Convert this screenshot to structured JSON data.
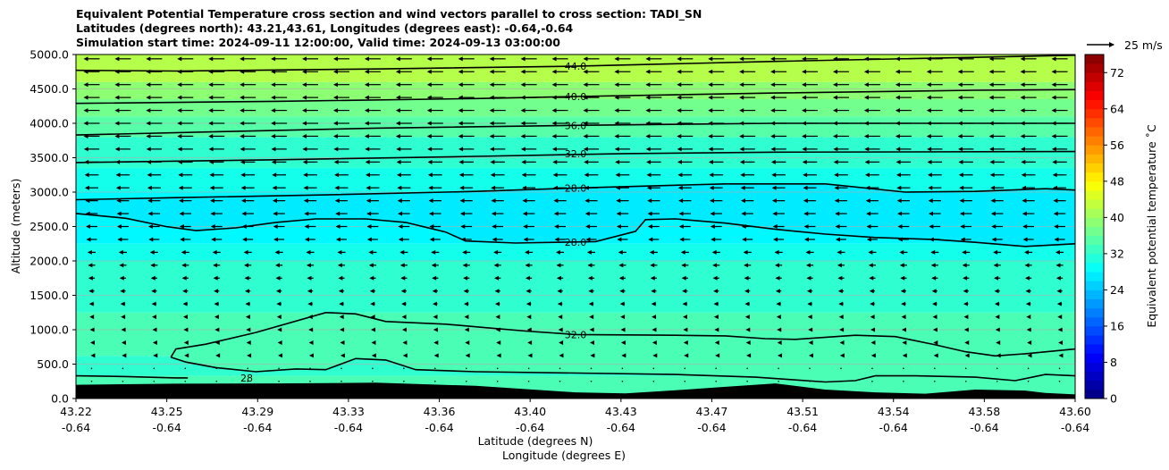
{
  "title_lines": [
    "Equivalent Potential Temperature cross section and wind vectors parallel to cross section: TADI_SN",
    "Latitudes (degrees north): 43.21,43.61, Longitudes (degrees east): -0.64,-0.64",
    "Simulation start time: 2024-09-11 12:00:00, Valid time: 2024-09-13 03:00:00"
  ],
  "chart_data": {
    "type": "contourf",
    "xlabel": "Latitude (degrees N)",
    "xlabel2": "Longitude (degrees E)",
    "ylabel": "Altitude (meters)",
    "ylim": [
      0,
      5000
    ],
    "y_ticks": [
      0,
      500,
      1000,
      1500,
      2000,
      2500,
      3000,
      3500,
      4000,
      4500,
      5000
    ],
    "y_tick_labels": [
      "0.0",
      "500.0",
      "1000.0",
      "1500.0",
      "2000.0",
      "2500.0",
      "3000.0",
      "3500.0",
      "4000.0",
      "4500.0",
      "5000.0"
    ],
    "x_ticks": [
      {
        "lat": "43.22",
        "lon": "-0.64"
      },
      {
        "lat": "43.25",
        "lon": "-0.64"
      },
      {
        "lat": "43.29",
        "lon": "-0.64"
      },
      {
        "lat": "43.33",
        "lon": "-0.64"
      },
      {
        "lat": "43.36",
        "lon": "-0.64"
      },
      {
        "lat": "43.40",
        "lon": "-0.64"
      },
      {
        "lat": "43.43",
        "lon": "-0.64"
      },
      {
        "lat": "43.47",
        "lon": "-0.64"
      },
      {
        "lat": "43.51",
        "lon": "-0.64"
      },
      {
        "lat": "43.54",
        "lon": "-0.64"
      },
      {
        "lat": "43.58",
        "lon": "-0.64"
      },
      {
        "lat": "43.60",
        "lon": "-0.64"
      }
    ],
    "grid": true,
    "colorbar": {
      "label": "Equivalent potential temperature $^\\circ$C",
      "label_text": "Equivalent potential temperature ˚C",
      "min": 0,
      "max": 76,
      "step": 2,
      "tick_values": [
        0,
        8,
        16,
        24,
        32,
        40,
        48,
        56,
        64,
        72
      ],
      "tick_labels": [
        "0",
        "8",
        "16",
        "24",
        "32",
        "40",
        "48",
        "56",
        "64",
        "72"
      ],
      "colormap": "jet"
    },
    "vector_key": {
      "label": "25 m/s",
      "speed": 25
    },
    "contours": [
      {
        "label": "44.0",
        "pts": [
          [
            0,
            4770
          ],
          [
            0.1,
            4760
          ],
          [
            0.3,
            4790
          ],
          [
            0.5,
            4830
          ],
          [
            0.7,
            4900
          ],
          [
            1.0,
            4990
          ]
        ]
      },
      {
        "label": "40.0",
        "pts": [
          [
            0,
            4290
          ],
          [
            0.2,
            4320
          ],
          [
            0.4,
            4360
          ],
          [
            0.5,
            4390
          ],
          [
            0.7,
            4440
          ],
          [
            0.9,
            4480
          ],
          [
            1.0,
            4490
          ]
        ]
      },
      {
        "label": "36.0",
        "pts": [
          [
            0,
            3830
          ],
          [
            0.15,
            3880
          ],
          [
            0.3,
            3930
          ],
          [
            0.5,
            3970
          ],
          [
            0.7,
            4000
          ],
          [
            1.0,
            4000
          ]
        ]
      },
      {
        "label": "32.0",
        "pts": [
          [
            0,
            3430
          ],
          [
            0.2,
            3470
          ],
          [
            0.4,
            3520
          ],
          [
            0.55,
            3560
          ],
          [
            0.7,
            3580
          ],
          [
            1.0,
            3590
          ]
        ]
      },
      {
        "label": "28.0",
        "pts": [
          [
            0,
            2890
          ],
          [
            0.1,
            2920
          ],
          [
            0.25,
            2960
          ],
          [
            0.4,
            3010
          ],
          [
            0.5,
            3060
          ],
          [
            0.6,
            3100
          ],
          [
            0.65,
            3120
          ],
          [
            0.75,
            3120
          ],
          [
            0.83,
            3000
          ],
          [
            0.9,
            3010
          ],
          [
            0.97,
            3050
          ],
          [
            1.0,
            3030
          ]
        ]
      },
      {
        "label": "28.0",
        "pts": [
          [
            0,
            2690
          ],
          [
            0.05,
            2620
          ],
          [
            0.09,
            2500
          ],
          [
            0.12,
            2440
          ],
          [
            0.16,
            2480
          ],
          [
            0.2,
            2560
          ],
          [
            0.24,
            2610
          ],
          [
            0.29,
            2610
          ],
          [
            0.33,
            2560
          ],
          [
            0.37,
            2420
          ],
          [
            0.39,
            2290
          ],
          [
            0.44,
            2260
          ],
          [
            0.48,
            2270
          ],
          [
            0.52,
            2280
          ],
          [
            0.56,
            2430
          ],
          [
            0.57,
            2600
          ],
          [
            0.6,
            2610
          ],
          [
            0.65,
            2550
          ],
          [
            0.7,
            2460
          ],
          [
            0.75,
            2390
          ],
          [
            0.8,
            2340
          ],
          [
            0.86,
            2310
          ],
          [
            0.9,
            2270
          ],
          [
            0.95,
            2210
          ],
          [
            1.0,
            2250
          ]
        ]
      },
      {
        "label": "32.0",
        "pts": [
          [
            0.095,
            600
          ],
          [
            0.1,
            720
          ],
          [
            0.13,
            790
          ],
          [
            0.18,
            960
          ],
          [
            0.25,
            1250
          ],
          [
            0.28,
            1230
          ],
          [
            0.31,
            1120
          ],
          [
            0.37,
            1080
          ],
          [
            0.41,
            1030
          ],
          [
            0.45,
            980
          ],
          [
            0.5,
            930
          ],
          [
            0.6,
            920
          ],
          [
            0.65,
            910
          ],
          [
            0.69,
            870
          ],
          [
            0.72,
            860
          ],
          [
            0.78,
            920
          ],
          [
            0.82,
            900
          ],
          [
            0.86,
            780
          ],
          [
            0.89,
            680
          ],
          [
            0.92,
            620
          ],
          [
            0.95,
            650
          ],
          [
            1.0,
            720
          ]
        ]
      },
      {
        "label": "",
        "pts": [
          [
            0.095,
            600
          ],
          [
            0.11,
            530
          ],
          [
            0.14,
            450
          ],
          [
            0.18,
            390
          ],
          [
            0.22,
            430
          ],
          [
            0.25,
            420
          ],
          [
            0.28,
            580
          ],
          [
            0.31,
            560
          ],
          [
            0.34,
            420
          ],
          [
            0.4,
            390
          ],
          [
            0.5,
            370
          ],
          [
            0.6,
            350
          ],
          [
            0.68,
            310
          ],
          [
            0.72,
            270
          ],
          [
            0.75,
            240
          ],
          [
            0.78,
            260
          ],
          [
            0.8,
            330
          ],
          [
            0.84,
            330
          ],
          [
            0.9,
            310
          ],
          [
            0.94,
            260
          ],
          [
            0.97,
            350
          ],
          [
            1.0,
            330
          ]
        ]
      },
      {
        "label": "28",
        "pts": [
          [
            0,
            330
          ],
          [
            0.05,
            320
          ],
          [
            0.1,
            300
          ],
          [
            0.112,
            300
          ]
        ]
      }
    ],
    "terrain": [
      [
        0,
        200
      ],
      [
        0.1,
        215
      ],
      [
        0.2,
        220
      ],
      [
        0.3,
        230
      ],
      [
        0.4,
        185
      ],
      [
        0.5,
        90
      ],
      [
        0.55,
        75
      ],
      [
        0.6,
        120
      ],
      [
        0.65,
        170
      ],
      [
        0.7,
        220
      ],
      [
        0.75,
        130
      ],
      [
        0.8,
        90
      ],
      [
        0.85,
        70
      ],
      [
        0.9,
        130
      ],
      [
        0.95,
        115
      ],
      [
        0.97,
        80
      ],
      [
        1.0,
        60
      ]
    ]
  }
}
